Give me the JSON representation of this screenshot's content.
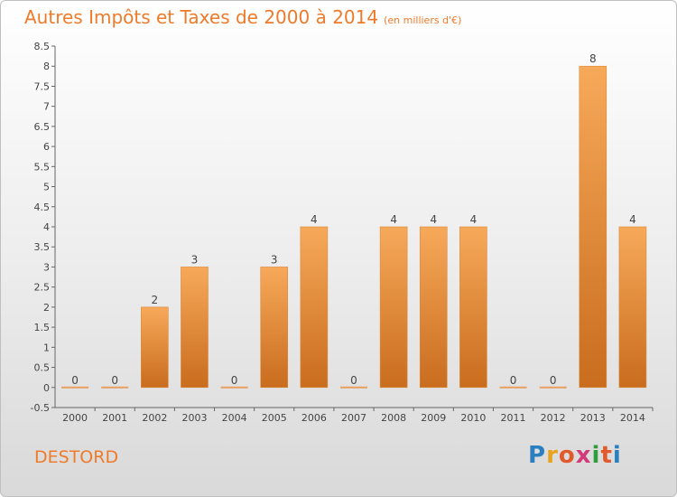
{
  "title": "Autres Impôts et Taxes de 2000 à 2014",
  "subtitle": "(en milliers d'€)",
  "place": "DESTORD",
  "logo": {
    "letters": [
      "P",
      "r",
      "o",
      "x",
      "i",
      "t",
      "i"
    ],
    "colors": [
      "#2a7fc1",
      "#e8a21c",
      "#e05a2c",
      "#d23a7a",
      "#2f9d3b",
      "#e05a2c",
      "#2a7fc1"
    ]
  },
  "colors": {
    "bar_top": "#f7a95a",
    "bar_bottom": "#c96c1e",
    "title": "#ef7b2a"
  },
  "chart_data": {
    "type": "bar",
    "categories": [
      "2000",
      "2001",
      "2002",
      "2003",
      "2004",
      "2005",
      "2006",
      "2007",
      "2008",
      "2009",
      "2010",
      "2011",
      "2012",
      "2013",
      "2014"
    ],
    "values": [
      0,
      0,
      2,
      3,
      0,
      3,
      4,
      0,
      4,
      4,
      4,
      0,
      0,
      8,
      4
    ],
    "value_labels": [
      "0",
      "0",
      "2",
      "3",
      "0",
      "3",
      "4",
      "0",
      "4",
      "4",
      "4",
      "0",
      "0",
      "8",
      "4"
    ],
    "yticks": [
      "-0.5",
      "0",
      "0.5",
      "1",
      "1.5",
      "2",
      "2.5",
      "3",
      "3.5",
      "4",
      "4.5",
      "5",
      "5.5",
      "6",
      "6.5",
      "7",
      "7.5",
      "8",
      "8.5"
    ],
    "ylim": [
      -0.5,
      8.5
    ],
    "grid": false
  }
}
